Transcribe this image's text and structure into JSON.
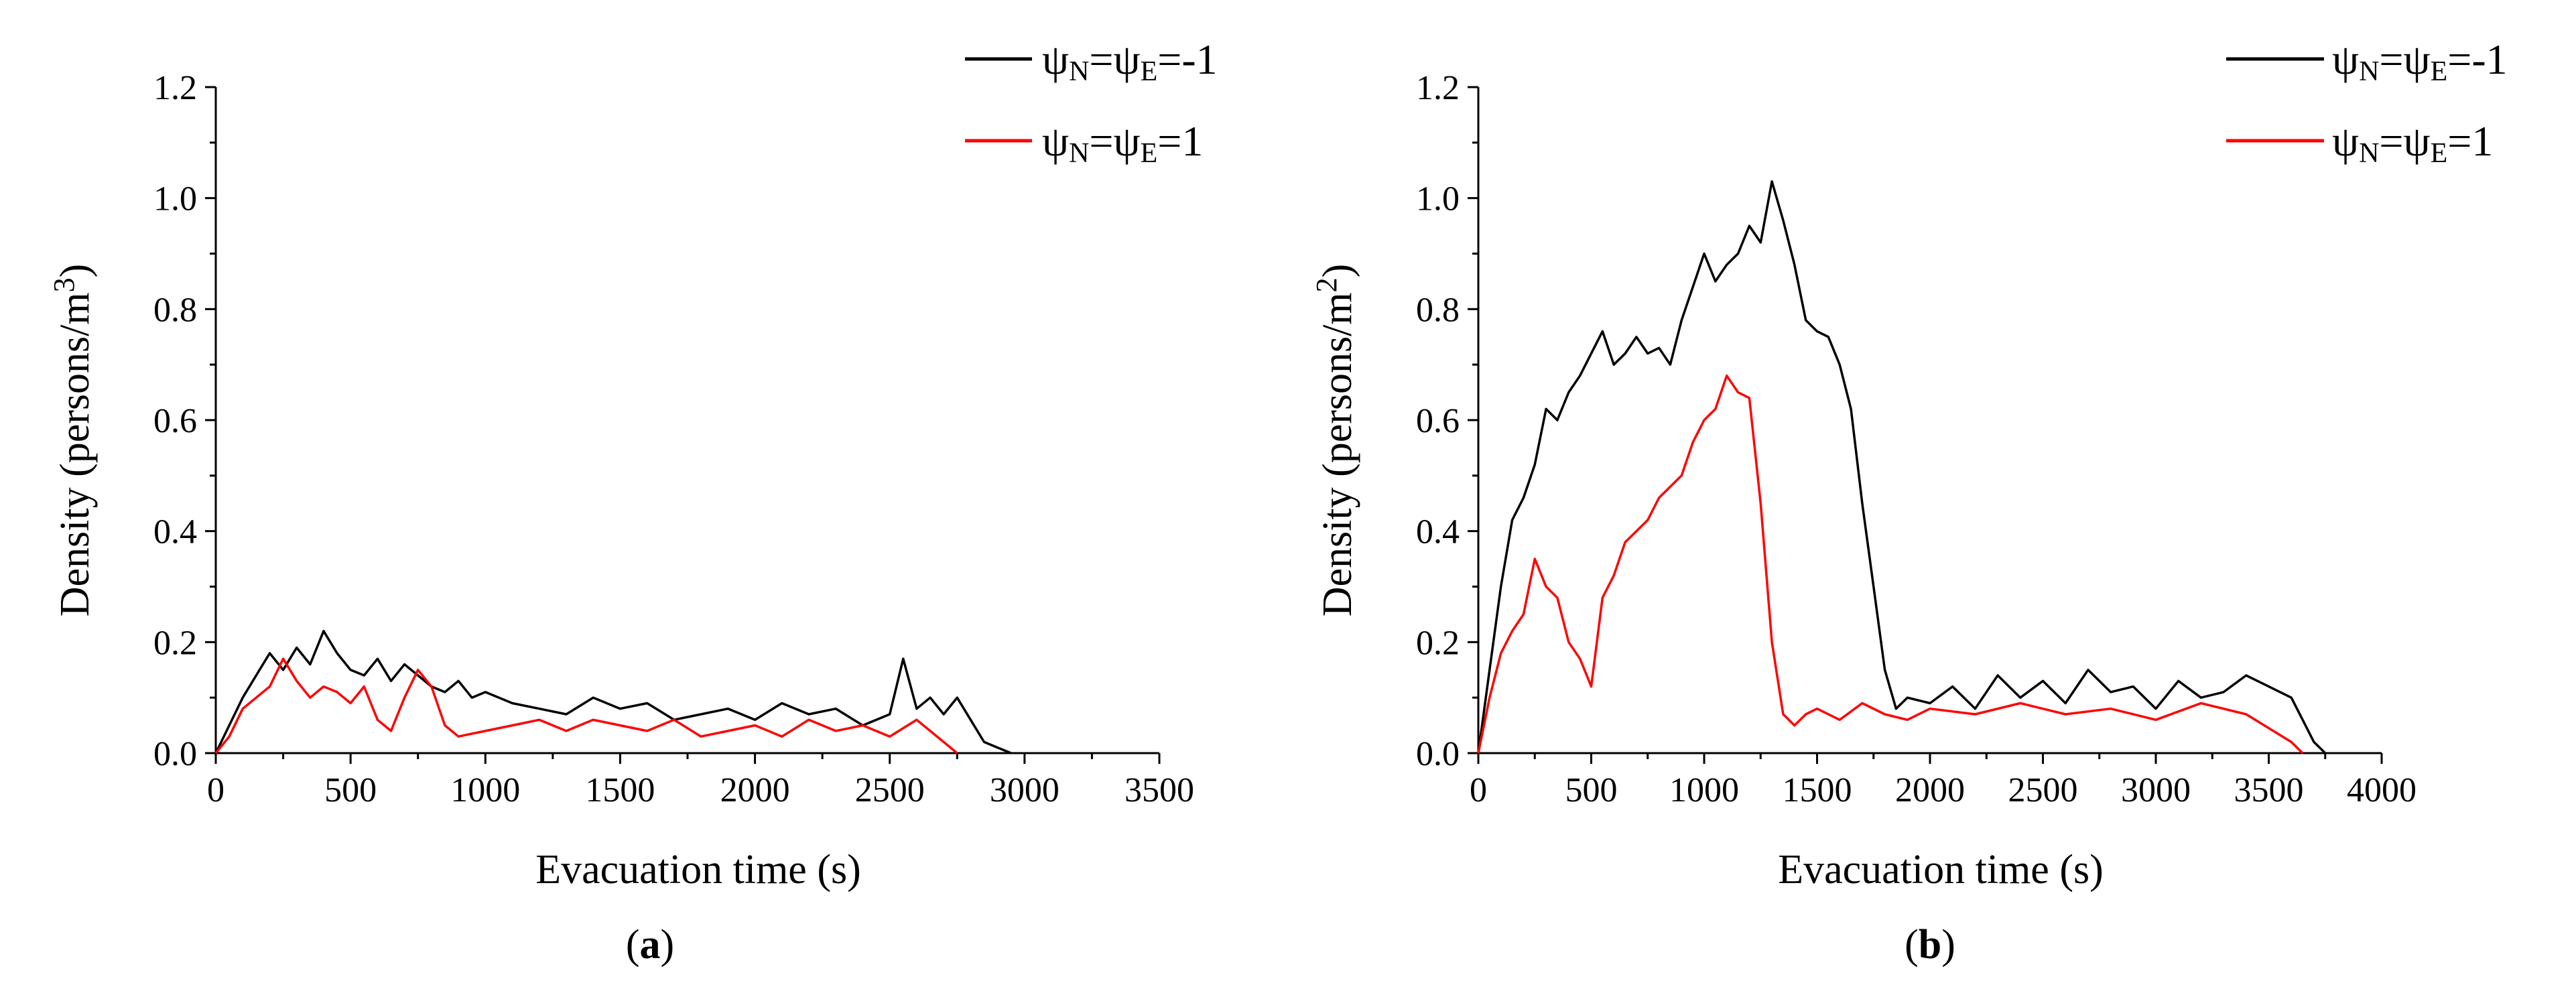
{
  "chart_data": [
    {
      "panel": "a",
      "type": "line",
      "xlabel": "Evacuation time (s)",
      "ylabel": "Density (persons/m",
      "ylabel_sup": "3",
      "ylabel_close": ")",
      "xlim": [
        0,
        3500
      ],
      "ylim": [
        0,
        1.2
      ],
      "xticks": [
        0,
        500,
        1000,
        1500,
        2000,
        2500,
        3000,
        3500
      ],
      "yticks": [
        "0.0",
        "0.2",
        "0.4",
        "0.6",
        "0.8",
        "1.0",
        "1.2"
      ],
      "caption": {
        "open": "(",
        "letter": "a",
        "close": ")"
      },
      "series": [
        {
          "name": "ψN=ψE=-1",
          "color": "#000000",
          "legend": {
            "psi": "ψ",
            "n": "N",
            "eq": "=",
            "e": "E",
            "val": "=-1"
          },
          "x": [
            0,
            50,
            100,
            150,
            200,
            250,
            300,
            350,
            400,
            450,
            500,
            550,
            600,
            650,
            700,
            750,
            800,
            850,
            900,
            950,
            1000,
            1100,
            1200,
            1300,
            1400,
            1500,
            1600,
            1700,
            1800,
            1900,
            2000,
            2100,
            2200,
            2300,
            2400,
            2500,
            2550,
            2600,
            2650,
            2700,
            2750,
            2800,
            2850,
            2900,
            2950
          ],
          "values": [
            0.0,
            0.05,
            0.1,
            0.14,
            0.18,
            0.15,
            0.19,
            0.16,
            0.22,
            0.18,
            0.15,
            0.14,
            0.17,
            0.13,
            0.16,
            0.14,
            0.12,
            0.11,
            0.13,
            0.1,
            0.11,
            0.09,
            0.08,
            0.07,
            0.1,
            0.08,
            0.09,
            0.06,
            0.07,
            0.08,
            0.06,
            0.09,
            0.07,
            0.08,
            0.05,
            0.07,
            0.17,
            0.08,
            0.1,
            0.07,
            0.1,
            0.06,
            0.02,
            0.01,
            0.0
          ]
        },
        {
          "name": "ψN=ψE=1",
          "color": "#ff0000",
          "legend": {
            "psi": "ψ",
            "n": "N",
            "eq": "=",
            "e": "E",
            "val": "=1"
          },
          "x": [
            0,
            50,
            100,
            150,
            200,
            250,
            300,
            350,
            400,
            450,
            500,
            550,
            600,
            650,
            700,
            750,
            800,
            850,
            900,
            1000,
            1100,
            1200,
            1300,
            1400,
            1500,
            1600,
            1700,
            1800,
            1900,
            2000,
            2100,
            2200,
            2300,
            2400,
            2500,
            2600,
            2650,
            2700,
            2750
          ],
          "values": [
            0.0,
            0.03,
            0.08,
            0.1,
            0.12,
            0.17,
            0.13,
            0.1,
            0.12,
            0.11,
            0.09,
            0.12,
            0.06,
            0.04,
            0.1,
            0.15,
            0.12,
            0.05,
            0.03,
            0.04,
            0.05,
            0.06,
            0.04,
            0.06,
            0.05,
            0.04,
            0.06,
            0.03,
            0.04,
            0.05,
            0.03,
            0.06,
            0.04,
            0.05,
            0.03,
            0.06,
            0.04,
            0.02,
            0.0
          ]
        }
      ]
    },
    {
      "panel": "b",
      "type": "line",
      "xlabel": "Evacuation time (s)",
      "ylabel": "Density (persons/m",
      "ylabel_sup": "2",
      "ylabel_close": ")",
      "xlim": [
        0,
        4000
      ],
      "ylim": [
        0,
        1.2
      ],
      "xticks": [
        0,
        500,
        1000,
        1500,
        2000,
        2500,
        3000,
        3500,
        4000
      ],
      "yticks": [
        "0.0",
        "0.2",
        "0.4",
        "0.6",
        "0.8",
        "1.0",
        "1.2"
      ],
      "caption": {
        "open": "(",
        "letter": "b",
        "close": ")"
      },
      "series": [
        {
          "name": "ψN=ψE=-1",
          "color": "#000000",
          "legend": {
            "psi": "ψ",
            "n": "N",
            "eq": "=",
            "e": "E",
            "val": "=-1"
          },
          "x": [
            0,
            50,
            100,
            150,
            200,
            250,
            300,
            350,
            400,
            450,
            500,
            550,
            600,
            650,
            700,
            750,
            800,
            850,
            900,
            950,
            1000,
            1050,
            1100,
            1150,
            1200,
            1250,
            1300,
            1350,
            1400,
            1450,
            1500,
            1550,
            1600,
            1650,
            1700,
            1750,
            1800,
            1850,
            1900,
            2000,
            2100,
            2200,
            2300,
            2400,
            2500,
            2600,
            2700,
            2800,
            2900,
            3000,
            3100,
            3200,
            3300,
            3400,
            3500,
            3600,
            3650,
            3700,
            3750
          ],
          "values": [
            0.0,
            0.15,
            0.3,
            0.42,
            0.46,
            0.52,
            0.62,
            0.6,
            0.65,
            0.68,
            0.72,
            0.76,
            0.7,
            0.72,
            0.75,
            0.72,
            0.73,
            0.7,
            0.78,
            0.84,
            0.9,
            0.85,
            0.88,
            0.9,
            0.95,
            0.92,
            1.03,
            0.96,
            0.88,
            0.78,
            0.76,
            0.75,
            0.7,
            0.62,
            0.45,
            0.3,
            0.15,
            0.08,
            0.1,
            0.09,
            0.12,
            0.08,
            0.14,
            0.1,
            0.13,
            0.09,
            0.15,
            0.11,
            0.12,
            0.08,
            0.13,
            0.1,
            0.11,
            0.14,
            0.12,
            0.1,
            0.06,
            0.02,
            0.0
          ]
        },
        {
          "name": "ψN=ψE=1",
          "color": "#ff0000",
          "legend": {
            "psi": "ψ",
            "n": "N",
            "eq": "=",
            "e": "E",
            "val": "=1"
          },
          "x": [
            0,
            50,
            100,
            150,
            200,
            250,
            300,
            350,
            400,
            450,
            500,
            550,
            600,
            650,
            700,
            750,
            800,
            850,
            900,
            950,
            1000,
            1050,
            1100,
            1150,
            1200,
            1250,
            1300,
            1350,
            1400,
            1450,
            1500,
            1600,
            1700,
            1800,
            1900,
            2000,
            2200,
            2400,
            2600,
            2800,
            3000,
            3200,
            3400,
            3600,
            3650
          ],
          "values": [
            0.0,
            0.1,
            0.18,
            0.22,
            0.25,
            0.35,
            0.3,
            0.28,
            0.2,
            0.17,
            0.12,
            0.28,
            0.32,
            0.38,
            0.4,
            0.42,
            0.46,
            0.48,
            0.5,
            0.56,
            0.6,
            0.62,
            0.68,
            0.65,
            0.64,
            0.45,
            0.2,
            0.07,
            0.05,
            0.07,
            0.08,
            0.06,
            0.09,
            0.07,
            0.06,
            0.08,
            0.07,
            0.09,
            0.07,
            0.08,
            0.06,
            0.09,
            0.07,
            0.02,
            0.0
          ]
        }
      ]
    }
  ]
}
